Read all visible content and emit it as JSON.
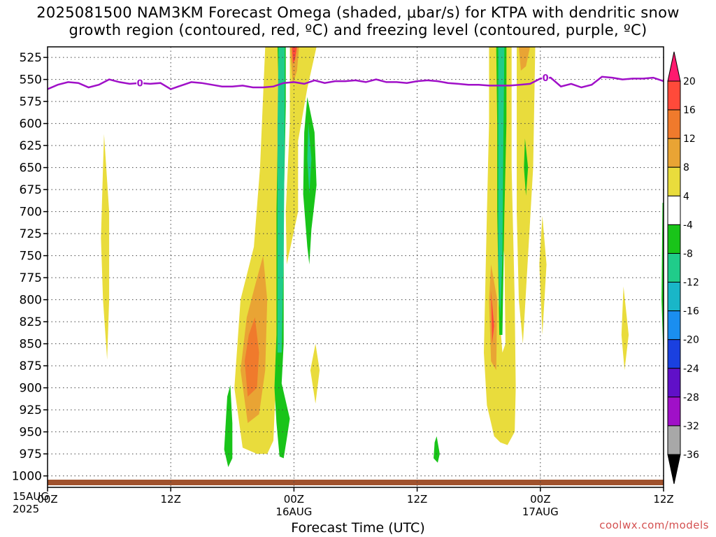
{
  "chart_data": {
    "type": "heatmap",
    "title_line1": "2025081500 NAM3KM Forecast Omega (shaded, μbar/s) for KTPA with dendritic snow",
    "title_line2": "growth region (contoured, red, ºC) and freezing level (contoured, purple, ºC)",
    "xlabel": "Forecast Time (UTC)",
    "credit": "coolwx.com/models",
    "x_start": {
      "hour": "00Z",
      "day": "15AUG",
      "year": "2025"
    },
    "x_range_hours": [
      0,
      60
    ],
    "x_ticks": [
      {
        "hour": 0,
        "label": "00Z",
        "sub": "15AUG"
      },
      {
        "hour": 12,
        "label": "12Z",
        "sub": ""
      },
      {
        "hour": 24,
        "label": "00Z",
        "sub": "16AUG"
      },
      {
        "hour": 36,
        "label": "12Z",
        "sub": ""
      },
      {
        "hour": 48,
        "label": "00Z",
        "sub": "17AUG"
      },
      {
        "hour": 60,
        "label": "12Z",
        "sub": ""
      }
    ],
    "y_range_hPa": [
      1013,
      513
    ],
    "y_ticks": [
      525,
      550,
      575,
      600,
      625,
      650,
      675,
      700,
      725,
      750,
      775,
      800,
      825,
      850,
      875,
      900,
      925,
      950,
      975,
      1000
    ],
    "grid": true,
    "colorbar": {
      "labels": [
        "20",
        "16",
        "12",
        "8",
        "4",
        "-4",
        "-8",
        "-12",
        "-16",
        "-20",
        "-24",
        "-28",
        "-32",
        "-36"
      ],
      "colors": [
        "#ff1a6e",
        "#ff4a3a",
        "#f07a2c",
        "#e9a434",
        "#e9dc3c",
        "#ffffff",
        "#19c419",
        "#20cc8a",
        "#19b6c8",
        "#1a8ef0",
        "#1a40e0",
        "#6010c8",
        "#a010c8",
        "#a8a8a8",
        "#000000"
      ]
    },
    "freezing_level": {
      "label": "0",
      "hours": [
        0,
        1,
        2,
        3,
        4,
        5,
        6,
        7,
        8,
        9,
        10,
        11,
        12,
        13,
        14,
        15,
        16,
        17,
        18,
        19,
        20,
        21,
        22,
        23,
        24,
        25,
        26,
        27,
        28,
        29,
        30,
        31,
        32,
        33,
        34,
        35,
        36,
        37,
        38,
        39,
        40,
        41,
        42,
        43,
        44,
        45,
        46,
        47,
        48,
        49,
        50,
        51,
        52,
        53,
        54,
        55,
        56,
        57,
        58,
        59,
        60
      ],
      "hPa": [
        561,
        556,
        553,
        554,
        559,
        556,
        550,
        553,
        555,
        554,
        555,
        554,
        561,
        557,
        553,
        554,
        556,
        558,
        558,
        557,
        559,
        559,
        558,
        554,
        553,
        555,
        551,
        554,
        552,
        552,
        551,
        553,
        550,
        553,
        553,
        554,
        552,
        551,
        552,
        554,
        555,
        556,
        556,
        557,
        557,
        557,
        556,
        555,
        549,
        548,
        558,
        555,
        559,
        556,
        547,
        548,
        550,
        549,
        549,
        548,
        552
      ]
    },
    "omega_regions": [
      {
        "category": "4",
        "color": "#e9dc3c",
        "points": [
          [
            5.5,
            612
          ],
          [
            6.0,
            700
          ],
          [
            6.0,
            800
          ],
          [
            5.8,
            868
          ],
          [
            5.4,
            800
          ],
          [
            5.2,
            730
          ],
          [
            5.4,
            650
          ]
        ]
      },
      {
        "category": "4",
        "color": "#e9dc3c",
        "points": [
          [
            21.2,
            513
          ],
          [
            22.8,
            513
          ],
          [
            22.8,
            700
          ],
          [
            22.4,
            850
          ],
          [
            22.0,
            960
          ],
          [
            21.4,
            975
          ],
          [
            20.4,
            975
          ],
          [
            19.0,
            968
          ],
          [
            18.2,
            900
          ],
          [
            18.8,
            800
          ],
          [
            20.1,
            740
          ],
          [
            20.7,
            650
          ]
        ]
      },
      {
        "category": "4",
        "color": "#e9dc3c",
        "points": [
          [
            23.6,
            513
          ],
          [
            26.2,
            513
          ],
          [
            25.3,
            560
          ],
          [
            24.4,
            620
          ],
          [
            24.4,
            700
          ],
          [
            23.3,
            760
          ],
          [
            23.2,
            700
          ],
          [
            23.6,
            600
          ]
        ]
      },
      {
        "category": "4",
        "color": "#e9dc3c",
        "points": [
          [
            26.1,
            850
          ],
          [
            26.5,
            880
          ],
          [
            26.1,
            918
          ],
          [
            25.6,
            880
          ]
        ]
      },
      {
        "category": "4",
        "color": "#e9dc3c",
        "points": [
          [
            43.0,
            513
          ],
          [
            45.2,
            513
          ],
          [
            45.2,
            650
          ],
          [
            45.5,
            800
          ],
          [
            45.6,
            900
          ],
          [
            45.5,
            950
          ],
          [
            44.8,
            965
          ],
          [
            44.1,
            962
          ],
          [
            43.5,
            955
          ],
          [
            42.8,
            920
          ],
          [
            42.5,
            860
          ],
          [
            42.8,
            700
          ],
          [
            43.0,
            600
          ]
        ]
      },
      {
        "category": "4",
        "color": "#e9dc3c",
        "points": [
          [
            45.7,
            513
          ],
          [
            47.5,
            513
          ],
          [
            47.3,
            650
          ],
          [
            46.8,
            750
          ],
          [
            46.5,
            810
          ],
          [
            46.3,
            850
          ],
          [
            45.9,
            800
          ],
          [
            45.7,
            700
          ]
        ]
      },
      {
        "category": "4",
        "color": "#e9dc3c",
        "points": [
          [
            48.2,
            705
          ],
          [
            48.6,
            760
          ],
          [
            48.2,
            840
          ],
          [
            47.9,
            760
          ]
        ]
      },
      {
        "category": "4",
        "color": "#e9dc3c",
        "points": [
          [
            56.1,
            785
          ],
          [
            56.6,
            840
          ],
          [
            56.2,
            880
          ],
          [
            55.9,
            840
          ]
        ]
      },
      {
        "category": "8",
        "color": "#e9a434",
        "points": [
          [
            21.0,
            750
          ],
          [
            21.4,
            800
          ],
          [
            21.2,
            880
          ],
          [
            20.6,
            930
          ],
          [
            19.5,
            940
          ],
          [
            18.8,
            880
          ],
          [
            19.4,
            820
          ],
          [
            20.3,
            780
          ]
        ]
      },
      {
        "category": "8",
        "color": "#e9a434",
        "points": [
          [
            23.6,
            513
          ],
          [
            24.5,
            513
          ],
          [
            24.3,
            540
          ],
          [
            23.9,
            555
          ]
        ]
      },
      {
        "category": "8",
        "color": "#e9a434",
        "points": [
          [
            43.2,
            760
          ],
          [
            43.8,
            800
          ],
          [
            43.7,
            880
          ],
          [
            43.2,
            870
          ],
          [
            43.0,
            800
          ]
        ]
      },
      {
        "category": "8",
        "color": "#e9a434",
        "points": [
          [
            45.9,
            513
          ],
          [
            47.0,
            513
          ],
          [
            46.6,
            535
          ],
          [
            46.1,
            540
          ]
        ]
      },
      {
        "category": "12",
        "color": "#f07a2c",
        "points": [
          [
            20.2,
            820
          ],
          [
            20.6,
            860
          ],
          [
            20.4,
            900
          ],
          [
            19.5,
            910
          ],
          [
            19.2,
            870
          ],
          [
            19.6,
            840
          ]
        ]
      },
      {
        "category": "16",
        "color": "#ff4a3a",
        "points": [
          [
            23.8,
            513
          ],
          [
            24.3,
            513
          ],
          [
            24.1,
            528
          ],
          [
            23.9,
            532
          ]
        ]
      },
      {
        "category": "16",
        "color": "#ff4a3a",
        "points": [
          [
            43.2,
            790
          ],
          [
            43.5,
            830
          ],
          [
            43.3,
            850
          ]
        ]
      },
      {
        "category": "-4",
        "color": "#ffffff",
        "points": [
          [
            44.0,
            700
          ],
          [
            44.5,
            750
          ],
          [
            44.6,
            850
          ],
          [
            44.3,
            860
          ],
          [
            43.9,
            800
          ]
        ]
      },
      {
        "category": "-8",
        "color": "#19c419",
        "points": [
          [
            22.4,
            513
          ],
          [
            23.2,
            513
          ],
          [
            23.2,
            580
          ],
          [
            23.0,
            700
          ],
          [
            23.0,
            850
          ],
          [
            22.8,
            895
          ],
          [
            23.6,
            935
          ],
          [
            23.3,
            958
          ],
          [
            23.0,
            980
          ],
          [
            22.6,
            978
          ],
          [
            22.3,
            940
          ],
          [
            22.1,
            900
          ],
          [
            22.3,
            840
          ],
          [
            22.3,
            700
          ],
          [
            22.5,
            560
          ]
        ]
      },
      {
        "category": "-8",
        "color": "#19c419",
        "points": [
          [
            25.3,
            570
          ],
          [
            26.0,
            610
          ],
          [
            26.2,
            670
          ],
          [
            25.7,
            720
          ],
          [
            25.5,
            760
          ],
          [
            25.3,
            740
          ],
          [
            24.9,
            680
          ],
          [
            25.0,
            610
          ]
        ]
      },
      {
        "category": "-8",
        "color": "#19c419",
        "points": [
          [
            17.8,
            897
          ],
          [
            18.0,
            940
          ],
          [
            18.0,
            980
          ],
          [
            17.6,
            990
          ],
          [
            17.2,
            970
          ],
          [
            17.5,
            910
          ]
        ]
      },
      {
        "category": "-8",
        "color": "#19c419",
        "points": [
          [
            43.7,
            513
          ],
          [
            44.7,
            513
          ],
          [
            44.7,
            600
          ],
          [
            44.5,
            700
          ],
          [
            44.3,
            840
          ],
          [
            44.0,
            840
          ],
          [
            43.8,
            700
          ],
          [
            43.8,
            600
          ]
        ]
      },
      {
        "category": "-8",
        "color": "#19c419",
        "points": [
          [
            46.5,
            617
          ],
          [
            46.8,
            650
          ],
          [
            46.6,
            682
          ],
          [
            46.4,
            650
          ]
        ]
      },
      {
        "category": "-8",
        "color": "#19c419",
        "points": [
          [
            37.9,
            955
          ],
          [
            38.2,
            975
          ],
          [
            38.0,
            985
          ],
          [
            37.6,
            980
          ],
          [
            37.7,
            962
          ]
        ]
      },
      {
        "category": "-8",
        "color": "#19c419",
        "points": [
          [
            59.9,
            690
          ],
          [
            60.0,
            690
          ],
          [
            60.0,
            870
          ],
          [
            59.8,
            800
          ]
        ]
      },
      {
        "category": "-12",
        "color": "#20cc8a",
        "points": [
          [
            22.5,
            513
          ],
          [
            23.1,
            513
          ],
          [
            23.1,
            600
          ],
          [
            23.0,
            750
          ],
          [
            22.8,
            860
          ],
          [
            22.4,
            860
          ],
          [
            22.4,
            750
          ],
          [
            22.4,
            600
          ]
        ]
      },
      {
        "category": "-12",
        "color": "#20cc8a",
        "points": [
          [
            25.4,
            600
          ],
          [
            25.7,
            640
          ],
          [
            25.5,
            680
          ],
          [
            25.3,
            640
          ]
        ]
      },
      {
        "category": "-12",
        "color": "#20cc8a",
        "points": [
          [
            43.9,
            513
          ],
          [
            44.5,
            513
          ],
          [
            44.4,
            620
          ],
          [
            44.3,
            750
          ],
          [
            44.1,
            820
          ],
          [
            43.9,
            760
          ],
          [
            43.9,
            620
          ]
        ]
      }
    ]
  }
}
